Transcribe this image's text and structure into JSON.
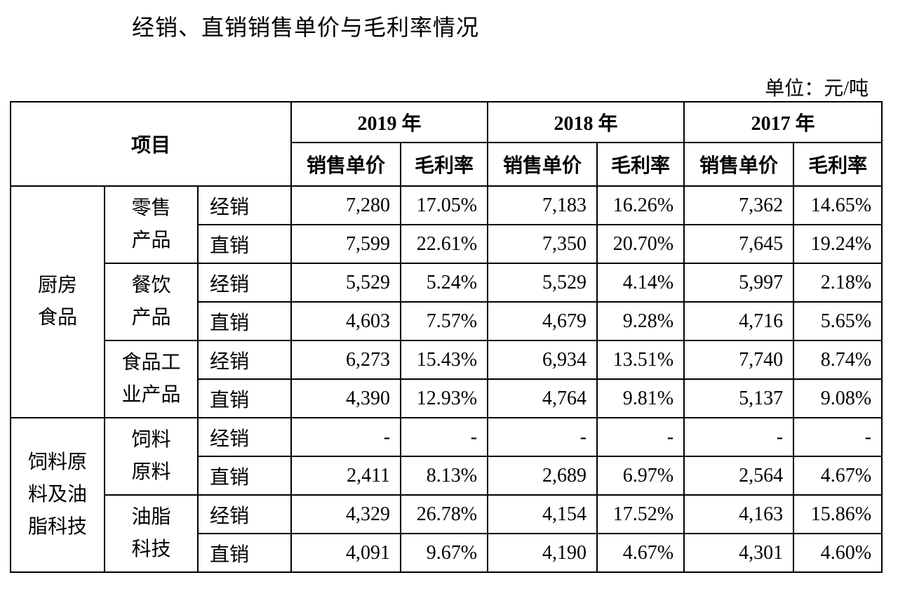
{
  "title": "经销、直销销售单价与毛利率情况",
  "unit": "单位：元/吨",
  "header": {
    "item": "项目",
    "years": [
      "2019 年",
      "2018 年",
      "2017 年"
    ],
    "price": "销售单价",
    "margin": "毛利率"
  },
  "groups": [
    {
      "name1": "厨房",
      "name2": "食品"
    },
    {
      "name1": "饲料原",
      "name2": "料及油",
      "name3": "脂科技"
    }
  ],
  "subgroups": [
    {
      "l1": "零售",
      "l2": "产品"
    },
    {
      "l1": "餐饮",
      "l2": "产品"
    },
    {
      "l1": "食品工",
      "l2": "业产品"
    },
    {
      "l1": "饲料",
      "l2": "原料"
    },
    {
      "l1": "油脂",
      "l2": "科技"
    }
  ],
  "rows": [
    {
      "type": "经销",
      "v": [
        "7,280",
        "17.05%",
        "7,183",
        "16.26%",
        "7,362",
        "14.65%"
      ]
    },
    {
      "type": "直销",
      "v": [
        "7,599",
        "22.61%",
        "7,350",
        "20.70%",
        "7,645",
        "19.24%"
      ]
    },
    {
      "type": "经销",
      "v": [
        "5,529",
        "5.24%",
        "5,529",
        "4.14%",
        "5,997",
        "2.18%"
      ]
    },
    {
      "type": "直销",
      "v": [
        "4,603",
        "7.57%",
        "4,679",
        "9.28%",
        "4,716",
        "5.65%"
      ]
    },
    {
      "type": "经销",
      "v": [
        "6,273",
        "15.43%",
        "6,934",
        "13.51%",
        "7,740",
        "8.74%"
      ]
    },
    {
      "type": "直销",
      "v": [
        "4,390",
        "12.93%",
        "4,764",
        "9.81%",
        "5,137",
        "9.08%"
      ]
    },
    {
      "type": "经销",
      "v": [
        "-",
        "-",
        "-",
        "-",
        "-",
        "-"
      ]
    },
    {
      "type": "直销",
      "v": [
        "2,411",
        "8.13%",
        "2,689",
        "6.97%",
        "2,564",
        "4.67%"
      ]
    },
    {
      "type": "经销",
      "v": [
        "4,329",
        "26.78%",
        "4,154",
        "17.52%",
        "4,163",
        "15.86%"
      ]
    },
    {
      "type": "直销",
      "v": [
        "4,091",
        "9.67%",
        "4,190",
        "4.67%",
        "4,301",
        "4.60%"
      ]
    }
  ]
}
